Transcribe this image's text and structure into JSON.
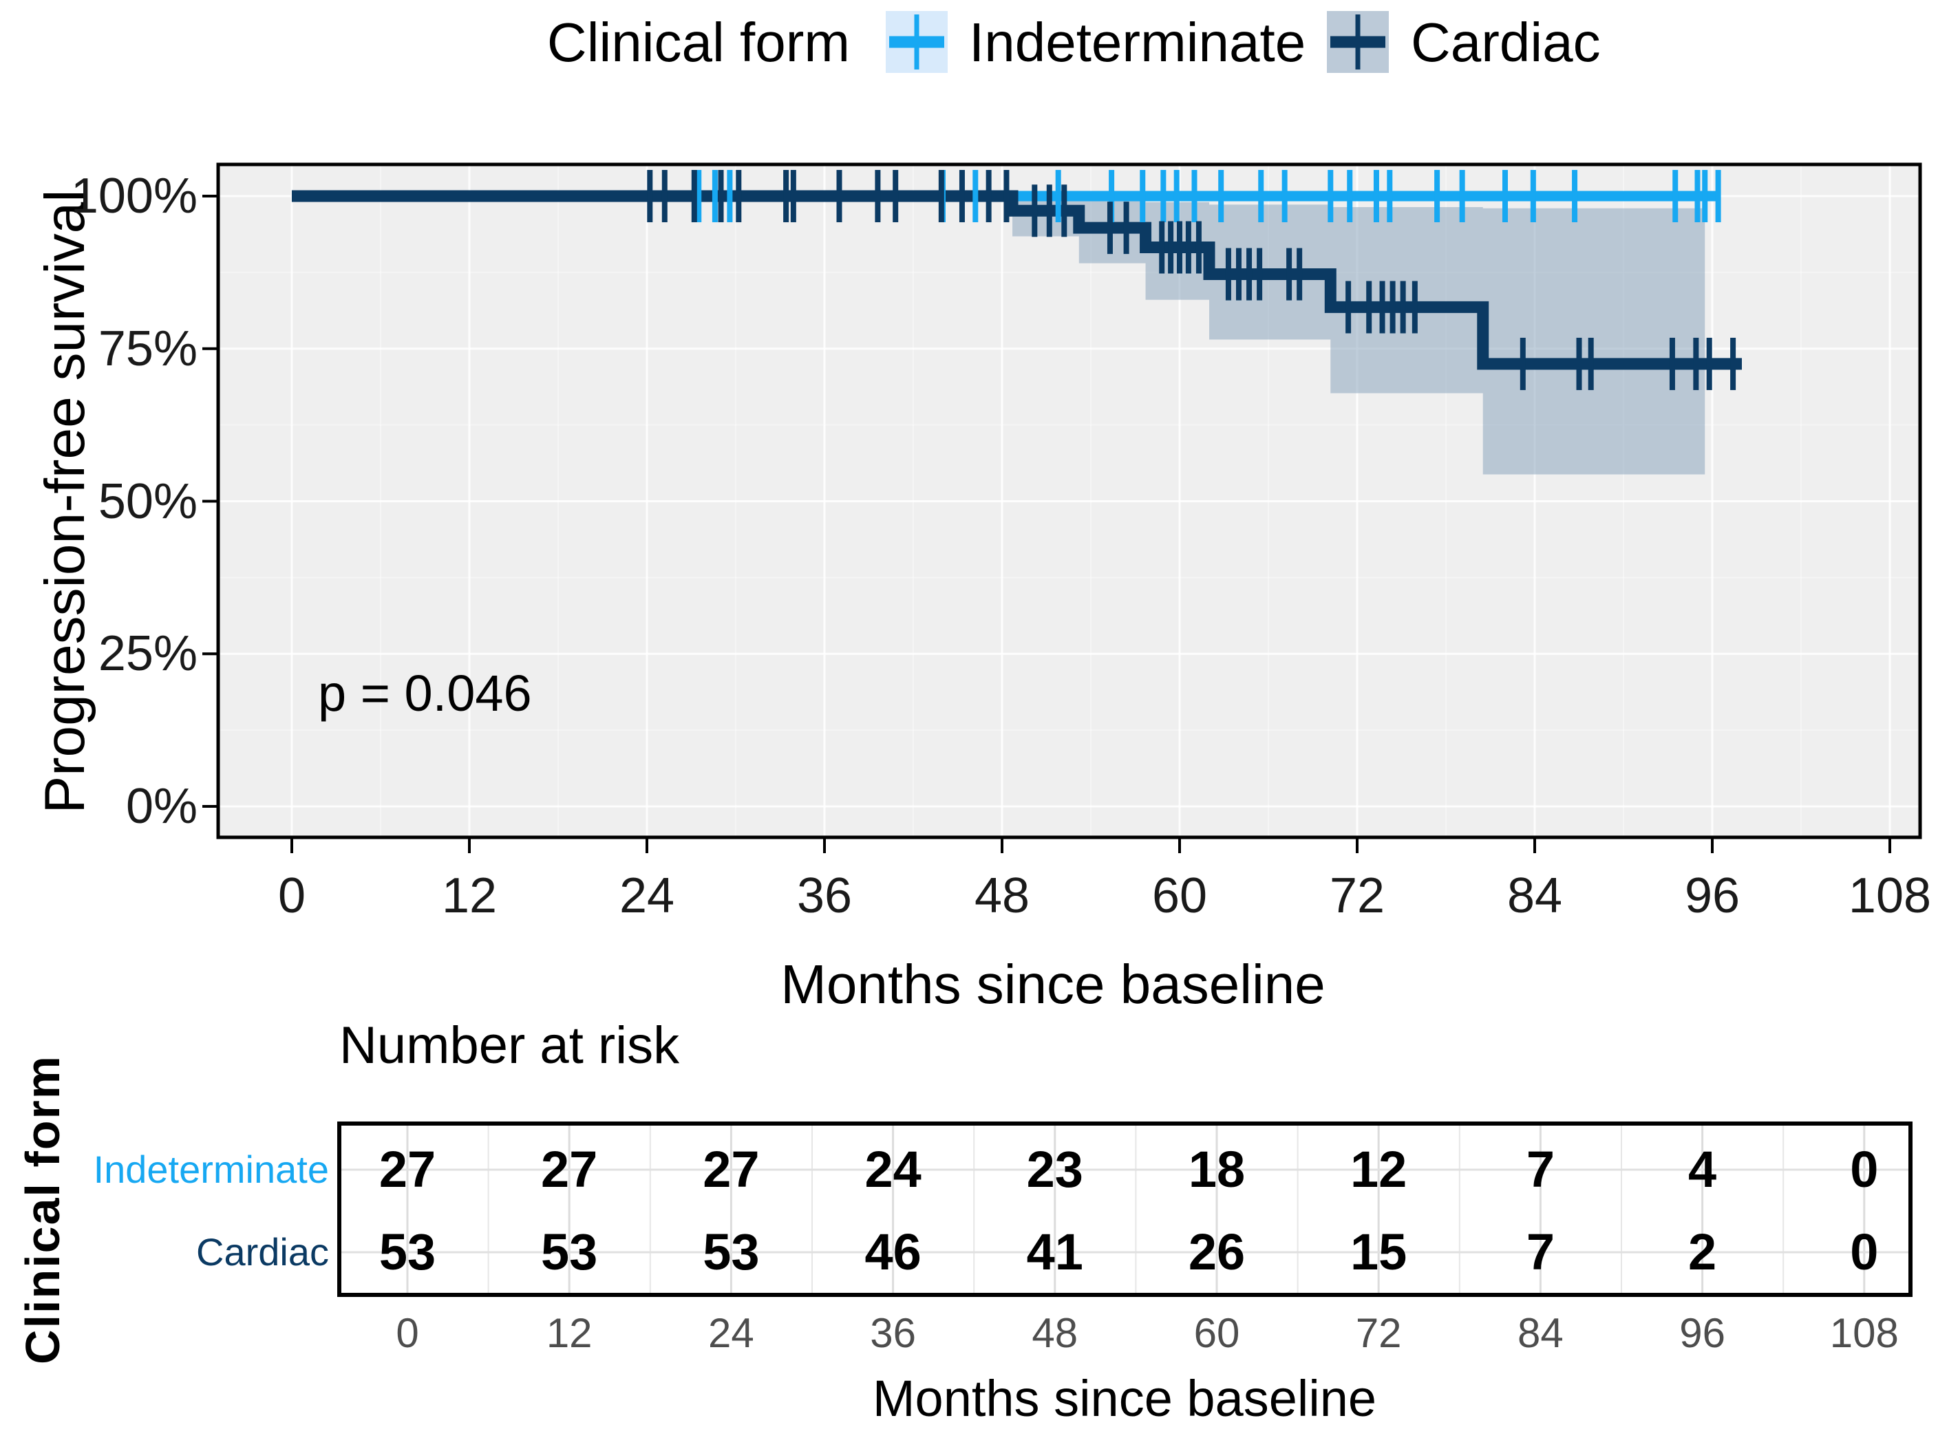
{
  "legend": {
    "title": "Clinical form",
    "items": [
      {
        "label": "Indeterminate",
        "line_color": "#17a8f2",
        "fill_color": "#d8eafb"
      },
      {
        "label": "Cardiac",
        "line_color": "#0b3a63",
        "fill_color": "#bccad8"
      }
    ]
  },
  "plot": {
    "p_value": "p = 0.046",
    "y_axis_title": "Progression-free survival",
    "x_axis_title": "Months since baseline"
  },
  "risk_table": {
    "title": "Number at risk",
    "group_axis_title": "Clinical form",
    "x_axis_title": "Months since baseline",
    "time_ticks": [
      0,
      12,
      24,
      36,
      48,
      60,
      72,
      84,
      96,
      108
    ],
    "rows": [
      {
        "label": "Indeterminate",
        "color": "#17a8f2",
        "counts": [
          27,
          27,
          27,
          24,
          23,
          18,
          12,
          7,
          4,
          0
        ]
      },
      {
        "label": "Cardiac",
        "color": "#0b3a63",
        "counts": [
          53,
          53,
          53,
          46,
          41,
          26,
          15,
          7,
          2,
          0
        ]
      }
    ]
  },
  "chart_data": {
    "type": "line",
    "subtype": "kaplan-meier-step",
    "title": "Clinical form",
    "xlabel": "Months since baseline",
    "ylabel": "Progression-free survival",
    "xlim": [
      0,
      108
    ],
    "ylim": [
      0,
      100
    ],
    "x_ticks": [
      0,
      12,
      24,
      36,
      48,
      60,
      72,
      84,
      96,
      108
    ],
    "y_ticks": [
      {
        "value": 100,
        "label": "100%"
      },
      {
        "value": 75,
        "label": "75%"
      },
      {
        "value": 50,
        "label": "50%"
      },
      {
        "value": 25,
        "label": "25%"
      },
      {
        "value": 0,
        "label": "0%"
      }
    ],
    "grid": {
      "x_minor_step": 6,
      "y_minor_step": 12.5,
      "major_color": "#ffffff",
      "panel_color": "#efefef"
    },
    "legend_position": "top",
    "p_value": "p = 0.046",
    "series": [
      {
        "name": "Indeterminate",
        "color": "#17a8f2",
        "ci_color": "#d8eafb",
        "steps": [
          [
            0,
            100
          ],
          [
            96.5,
            100
          ]
        ],
        "censors": [
          [
            27.5,
            100
          ],
          [
            28.6,
            100
          ],
          [
            29.6,
            100
          ],
          [
            44.0,
            100
          ],
          [
            46.2,
            100
          ],
          [
            51.8,
            100
          ],
          [
            55.4,
            100
          ],
          [
            57.5,
            100
          ],
          [
            58.9,
            100
          ],
          [
            59.8,
            100
          ],
          [
            61.0,
            100
          ],
          [
            62.8,
            100
          ],
          [
            65.5,
            100
          ],
          [
            67.1,
            100
          ],
          [
            70.2,
            100
          ],
          [
            71.5,
            100
          ],
          [
            73.3,
            100
          ],
          [
            74.2,
            100
          ],
          [
            77.4,
            100
          ],
          [
            79.1,
            100
          ],
          [
            82.0,
            100
          ],
          [
            83.9,
            100
          ],
          [
            86.7,
            100
          ],
          [
            93.5,
            100
          ],
          [
            95.0,
            100
          ],
          [
            95.5,
            100
          ],
          [
            96.4,
            100
          ]
        ],
        "ci": []
      },
      {
        "name": "Cardiac",
        "color": "#0b3a63",
        "ci_color": "#8da6bd",
        "ci_opacity": 0.55,
        "steps": [
          [
            0,
            100
          ],
          [
            48.7,
            97.6
          ],
          [
            53.2,
            94.8
          ],
          [
            57.7,
            91.6
          ],
          [
            62,
            87.2
          ],
          [
            70.2,
            81.8
          ],
          [
            80.5,
            72.5
          ],
          [
            98,
            72.5
          ]
        ],
        "censors": [
          [
            24.2,
            100
          ],
          [
            25.2,
            100
          ],
          [
            27.2,
            100
          ],
          [
            29.0,
            100
          ],
          [
            30.2,
            100
          ],
          [
            33.4,
            100
          ],
          [
            33.9,
            100
          ],
          [
            37.0,
            100
          ],
          [
            39.6,
            100
          ],
          [
            40.8,
            100
          ],
          [
            43.9,
            100
          ],
          [
            45.3,
            100
          ],
          [
            47.1,
            100
          ],
          [
            48.3,
            100
          ],
          [
            50.2,
            97.6
          ],
          [
            51.2,
            97.6
          ],
          [
            52.2,
            97.6
          ],
          [
            55.3,
            94.8
          ],
          [
            56.4,
            94.8
          ],
          [
            58.8,
            91.6
          ],
          [
            59.4,
            91.6
          ],
          [
            60.0,
            91.6
          ],
          [
            60.6,
            91.6
          ],
          [
            61.3,
            91.6
          ],
          [
            63.3,
            87.2
          ],
          [
            64.0,
            87.2
          ],
          [
            64.7,
            87.2
          ],
          [
            65.4,
            87.2
          ],
          [
            67.4,
            87.2
          ],
          [
            68.1,
            87.2
          ],
          [
            71.4,
            81.8
          ],
          [
            72.8,
            81.8
          ],
          [
            73.7,
            81.8
          ],
          [
            74.4,
            81.8
          ],
          [
            75.1,
            81.8
          ],
          [
            75.9,
            81.8
          ],
          [
            83.2,
            72.5
          ],
          [
            87.0,
            72.5
          ],
          [
            87.8,
            72.5
          ],
          [
            93.3,
            72.5
          ],
          [
            94.9,
            72.5
          ],
          [
            95.8,
            72.5
          ],
          [
            97.4,
            72.5
          ]
        ],
        "ci": [
          [
            48.7,
            53.2,
            93.4,
            99.7
          ],
          [
            53.2,
            57.7,
            89.0,
            99.4
          ],
          [
            57.7,
            62.0,
            83.0,
            99.0
          ],
          [
            62.0,
            70.2,
            76.5,
            98.6
          ],
          [
            70.2,
            80.5,
            67.7,
            98.2
          ],
          [
            80.5,
            95.5,
            54.4,
            98.0
          ]
        ]
      }
    ]
  }
}
